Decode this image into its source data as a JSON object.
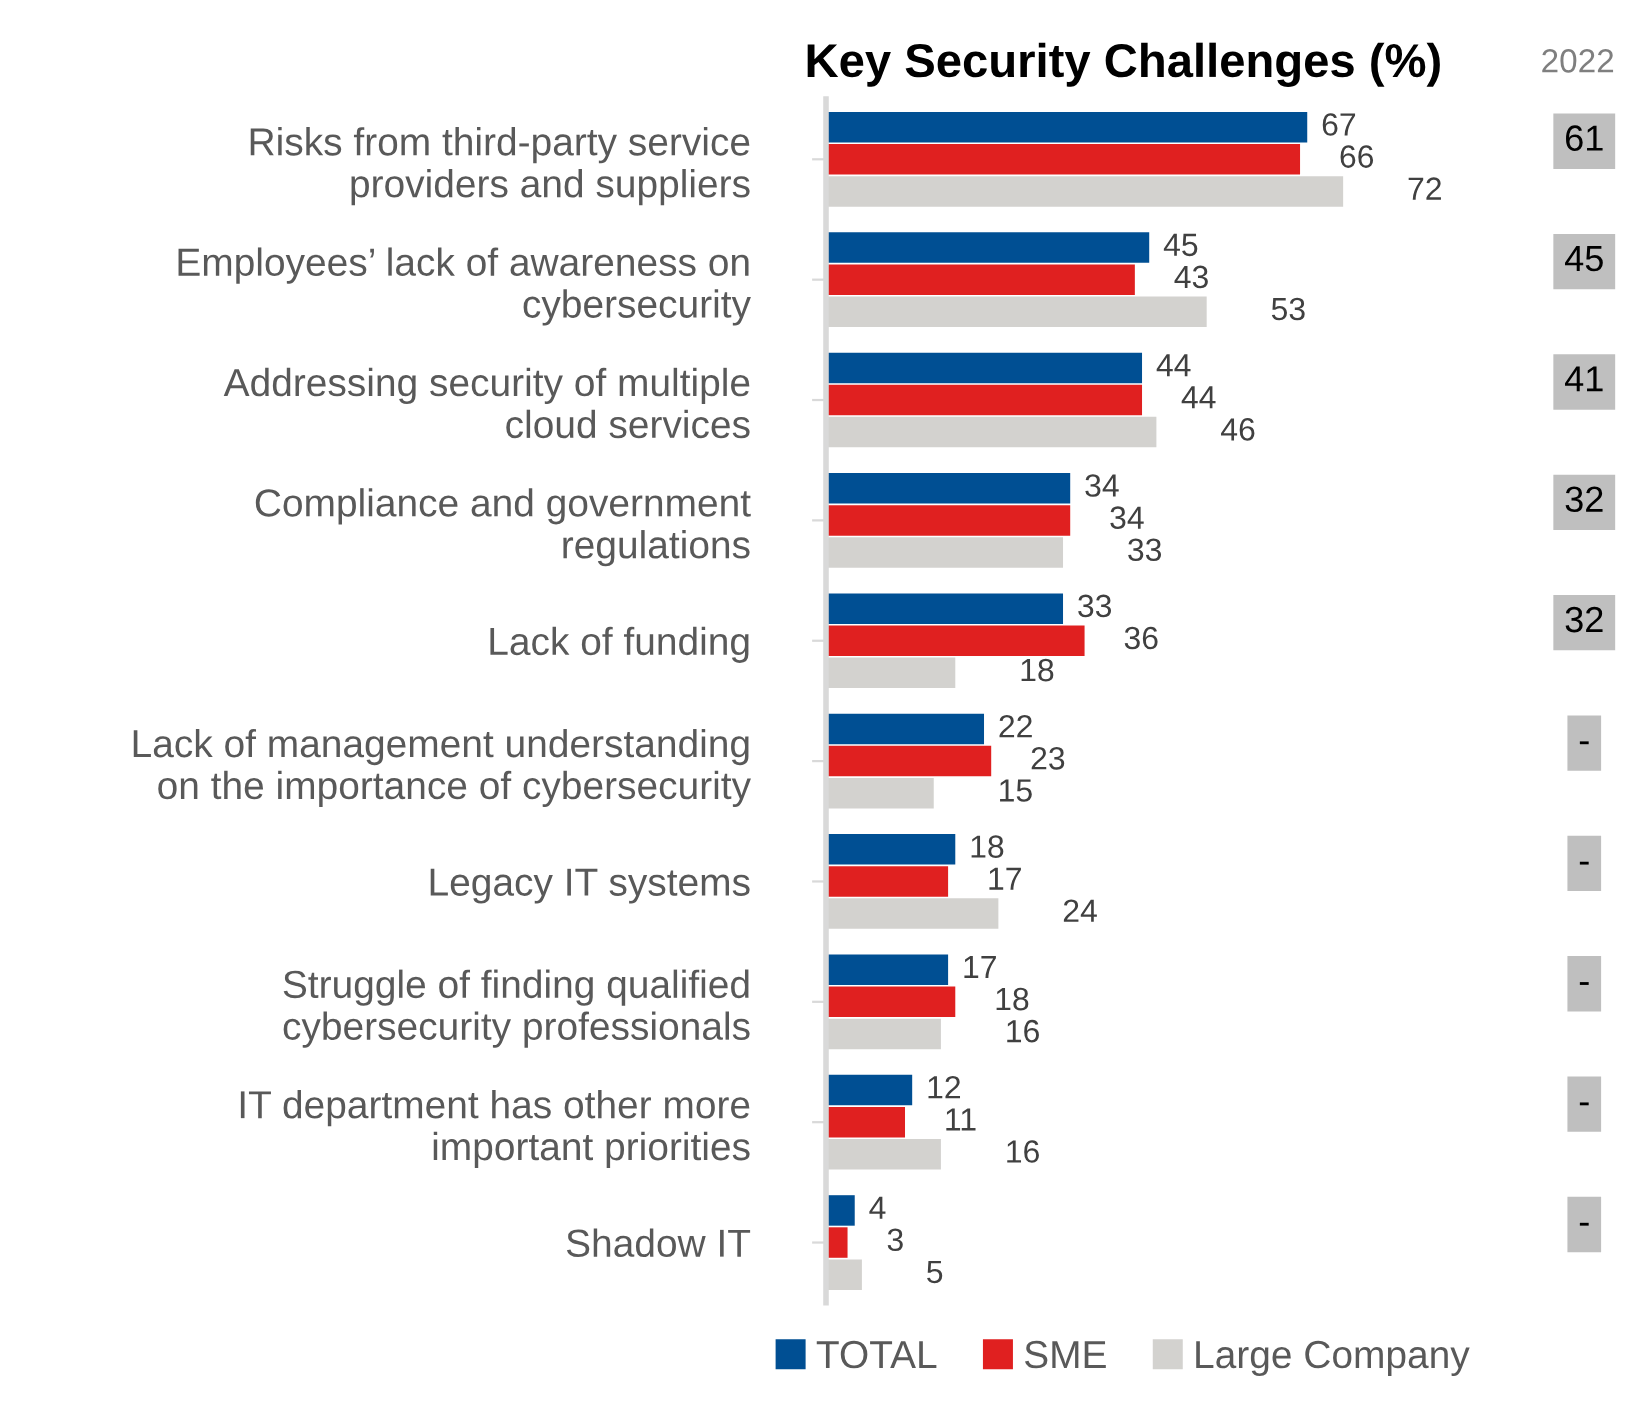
{
  "chart_data": {
    "type": "bar",
    "orientation": "horizontal",
    "title": "Key Security Challenges (%)",
    "categories": [
      "Risks from third-party service\nproviders and suppliers",
      "Employees’ lack of awareness on\ncybersecurity",
      "Addressing security of multiple\ncloud services",
      "Compliance and government\nregulations",
      "Lack of funding",
      "Lack of management understanding\non the importance of cybersecurity",
      "Legacy IT systems",
      "Struggle of finding qualified\ncybersecurity professionals",
      "IT department has other more\nimportant priorities",
      "Shadow IT"
    ],
    "series": [
      {
        "name": "TOTAL",
        "color": "#004f93",
        "values": [
          67,
          45,
          44,
          34,
          33,
          22,
          18,
          17,
          12,
          4
        ]
      },
      {
        "name": "SME",
        "color": "#e02020",
        "values": [
          66,
          43,
          44,
          34,
          36,
          23,
          17,
          18,
          11,
          3
        ]
      },
      {
        "name": "Large Company",
        "color": "#d3d2cf",
        "values": [
          72,
          53,
          46,
          33,
          18,
          15,
          24,
          16,
          16,
          5
        ]
      }
    ],
    "data_labels": true,
    "legend": "bottom",
    "grid": false,
    "annotations": [
      "2022",
      "61",
      "45",
      "41",
      "32",
      "32",
      "-",
      "-",
      "-",
      "-",
      "-"
    ]
  }
}
